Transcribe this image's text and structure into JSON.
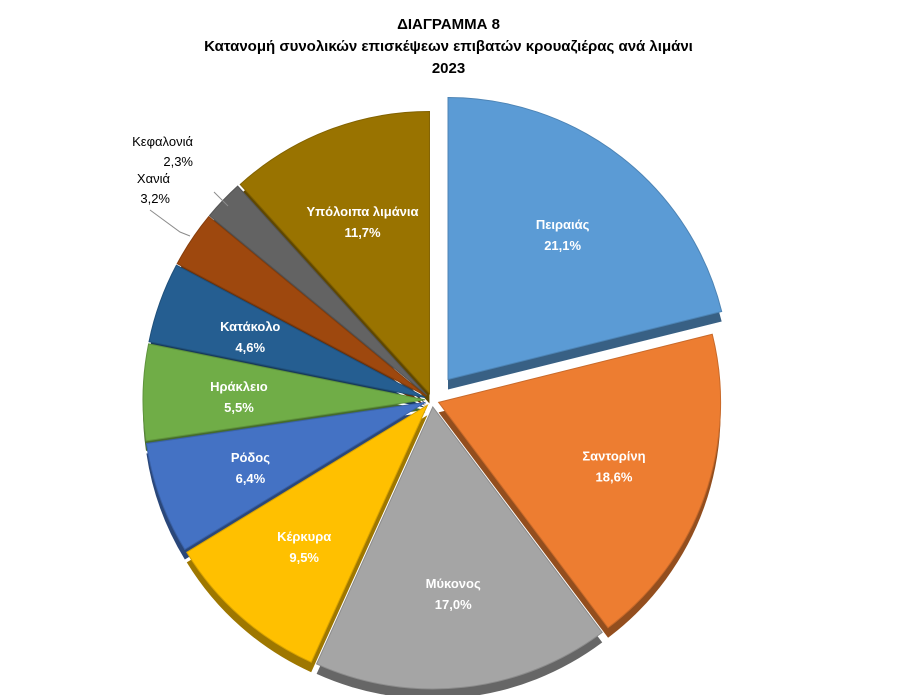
{
  "chart_data": {
    "type": "pie",
    "title": "ΔΙΑΓΡΑΜΜΑ 8",
    "subtitle": "Κατανομή συνολικών επισκέψεων επιβατών κρουαζιέρας ανά λιμάνι",
    "year": "2023",
    "exploded": true,
    "three_d": true,
    "slices": [
      {
        "label": "Πειραιάς",
        "value": 21.1,
        "display": "21,1%",
        "color": "#5b9bd5",
        "label_color": "#ffffff"
      },
      {
        "label": "Σαντορίνη",
        "value": 18.6,
        "display": "18,6%",
        "color": "#ed7d31",
        "label_color": "#ffffff"
      },
      {
        "label": "Μύκονος",
        "value": 17.0,
        "display": "17,0%",
        "color": "#a5a5a5",
        "label_color": "#ffffff"
      },
      {
        "label": "Κέρκυρα",
        "value": 9.5,
        "display": "9,5%",
        "color": "#ffc000",
        "label_color": "#ffffff"
      },
      {
        "label": "Ρόδος",
        "value": 6.4,
        "display": "6,4%",
        "color": "#4472c4",
        "label_color": "#ffffff"
      },
      {
        "label": "Ηράκλειο",
        "value": 5.5,
        "display": "5,5%",
        "color": "#70ad47",
        "label_color": "#ffffff"
      },
      {
        "label": "Κατάκολο",
        "value": 4.6,
        "display": "4,6%",
        "color": "#255e91",
        "label_color": "#ffffff"
      },
      {
        "label": "Χανιά",
        "value": 3.2,
        "display": "3,2%",
        "color": "#9e480e",
        "label_color": "#000000",
        "outside": true
      },
      {
        "label": "Κεφαλονιά",
        "value": 2.3,
        "display": "2,3%",
        "color": "#636363",
        "label_color": "#000000",
        "outside": true
      },
      {
        "label": "Υπόλοιπα λιμάνια",
        "value": 11.7,
        "display": "11,7%",
        "color": "#997300",
        "label_color": "#ffffff"
      }
    ]
  }
}
